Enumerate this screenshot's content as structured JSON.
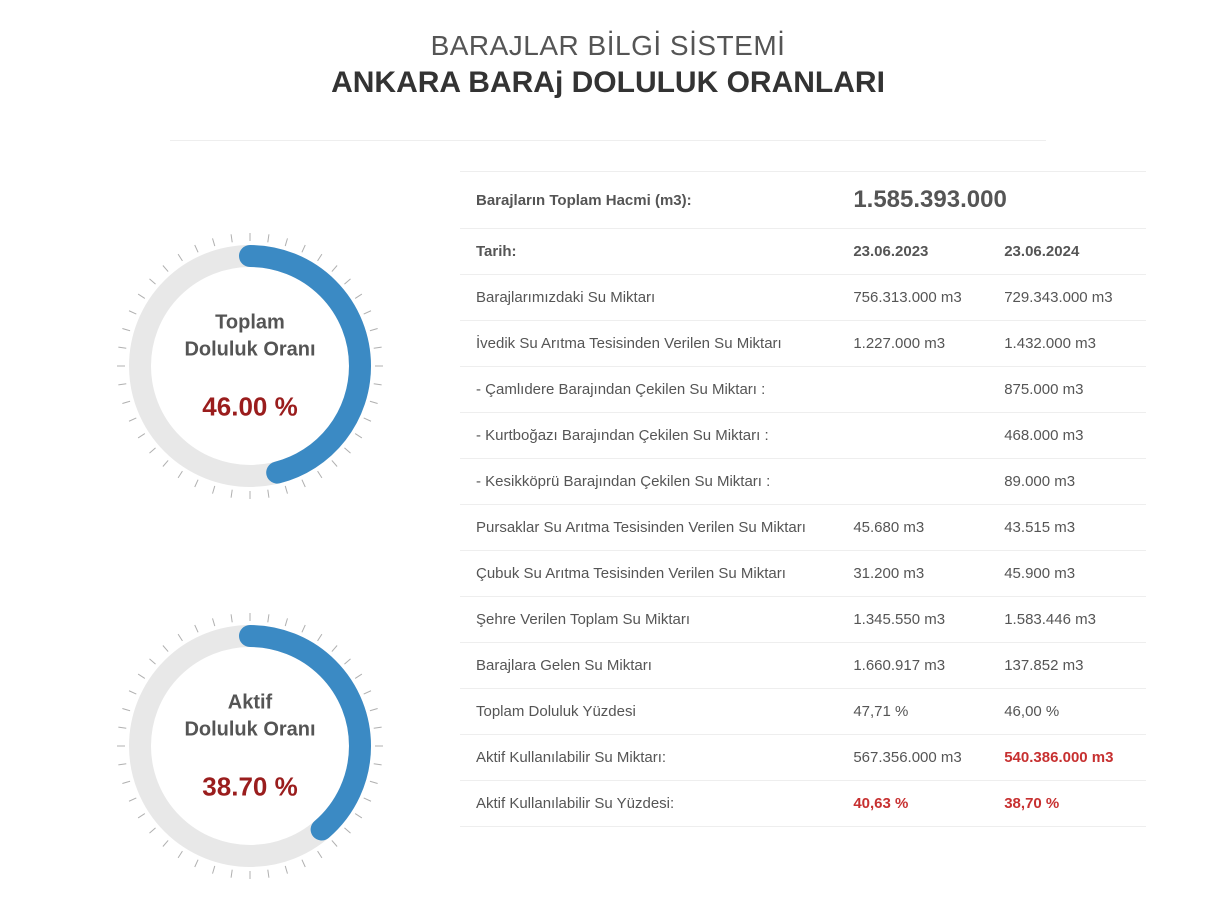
{
  "header": {
    "subtitle": "BARAJLAR BİLGİ SİSTEMİ",
    "title": "ANKARA BARAj DOLULUK ORANLARI"
  },
  "colors": {
    "gauge_fill": "#3b8ac4",
    "gauge_track": "#e8e8e8",
    "tick": "#b0b0b0",
    "value_text": "#9a1d1d",
    "highlight_text": "#c73030",
    "row_border": "#eeeeee"
  },
  "gauges": [
    {
      "label_line1": "Toplam",
      "label_line2": "Doluluk Oranı",
      "percent": 46.0,
      "display": "46.00 %"
    },
    {
      "label_line1": "Aktif",
      "label_line2": "Doluluk Oranı",
      "percent": 38.7,
      "display": "38.70 %"
    }
  ],
  "gauge_style": {
    "outer_radius": 110,
    "stroke_width": 22,
    "tick_count": 44,
    "tick_inner": 125,
    "tick_outer": 133
  },
  "table": {
    "total_volume_label": "Barajların Toplam Hacmi (m3):",
    "total_volume_value": "1.585.393.000",
    "date_label": "Tarih:",
    "date_2023": "23.06.2023",
    "date_2024": "23.06.2024",
    "rows": [
      {
        "label": "Barajlarımızdaki Su Miktarı",
        "v2023": "756.313.000 m3",
        "v2024": "729.343.000 m3",
        "hl2023": false,
        "hl2024": false
      },
      {
        "label": "İvedik Su Arıtma Tesisinden Verilen Su Miktarı",
        "v2023": "1.227.000 m3",
        "v2024": "1.432.000 m3",
        "hl2023": false,
        "hl2024": false
      },
      {
        "label": "- Çamlıdere Barajından Çekilen Su Miktarı :",
        "v2023": "",
        "v2024": "875.000 m3",
        "hl2023": false,
        "hl2024": false
      },
      {
        "label": "- Kurtboğazı Barajından Çekilen Su Miktarı :",
        "v2023": "",
        "v2024": "468.000 m3",
        "hl2023": false,
        "hl2024": false
      },
      {
        "label": "- Kesikköprü Barajından Çekilen Su Miktarı :",
        "v2023": "",
        "v2024": "89.000 m3",
        "hl2023": false,
        "hl2024": false
      },
      {
        "label": "Pursaklar Su Arıtma Tesisinden Verilen Su Miktarı",
        "v2023": "45.680 m3",
        "v2024": "43.515 m3",
        "hl2023": false,
        "hl2024": false
      },
      {
        "label": "Çubuk Su Arıtma Tesisinden Verilen Su Miktarı",
        "v2023": "31.200 m3",
        "v2024": "45.900 m3",
        "hl2023": false,
        "hl2024": false
      },
      {
        "label": "Şehre Verilen Toplam Su Miktarı",
        "v2023": "1.345.550 m3",
        "v2024": "1.583.446 m3",
        "hl2023": false,
        "hl2024": false
      },
      {
        "label": "Barajlara Gelen Su Miktarı",
        "v2023": "1.660.917 m3",
        "v2024": "137.852 m3",
        "hl2023": false,
        "hl2024": false
      },
      {
        "label": "Toplam Doluluk Yüzdesi",
        "v2023": "47,71 %",
        "v2024": "46,00 %",
        "hl2023": false,
        "hl2024": false
      },
      {
        "label": "Aktif Kullanılabilir Su Miktarı:",
        "v2023": "567.356.000 m3",
        "v2024": "540.386.000 m3",
        "hl2023": false,
        "hl2024": true
      },
      {
        "label": "Aktif Kullanılabilir Su Yüzdesi:",
        "v2023": "40,63 %",
        "v2024": "38,70 %",
        "hl2023": true,
        "hl2024": true
      }
    ]
  }
}
